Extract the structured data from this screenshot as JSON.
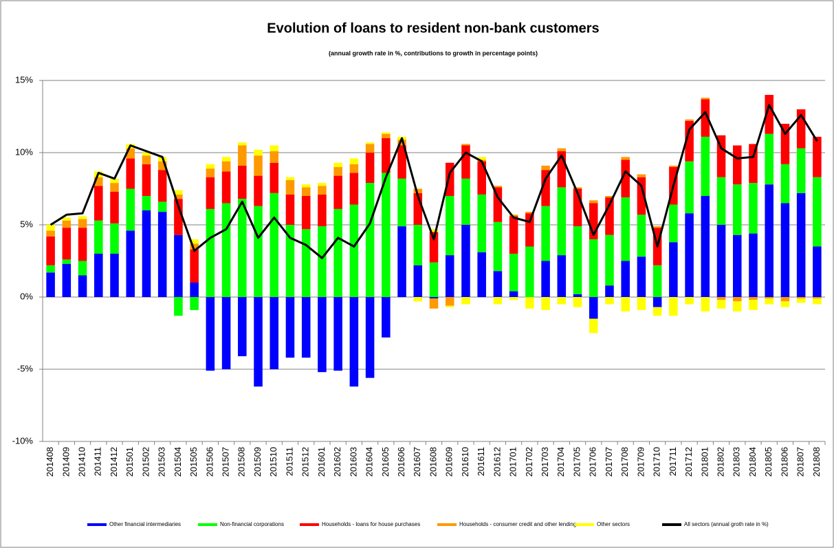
{
  "chart_data": {
    "type": "bar",
    "stacked": true,
    "title": "Evolution of loans to resident non-bank customers",
    "subtitle": "(annual growth rate in %, contributions to growth in percentage points)",
    "categories": [
      "201408",
      "201409",
      "201410",
      "201411",
      "201412",
      "201501",
      "201502",
      "201503",
      "201504",
      "201505",
      "201506",
      "201507",
      "201508",
      "201509",
      "201510",
      "201511",
      "201512",
      "201601",
      "201602",
      "201603",
      "201604",
      "201605",
      "201606",
      "201607",
      "201608",
      "201609",
      "201610",
      "201611",
      "201612",
      "201701",
      "201702",
      "201703",
      "201704",
      "201705",
      "201706",
      "201707",
      "201708",
      "201709",
      "201710",
      "201711",
      "201712",
      "201801",
      "201802",
      "201803",
      "201804",
      "201805",
      "201806",
      "201807",
      "201808"
    ],
    "ylim": [
      -10,
      15
    ],
    "yticks": [
      {
        "value": -10,
        "label": "-10%"
      },
      {
        "value": -5,
        "label": "-5%"
      },
      {
        "value": 0,
        "label": "0%"
      },
      {
        "value": 5,
        "label": "5%"
      },
      {
        "value": 10,
        "label": "10%"
      },
      {
        "value": 15,
        "label": "15%"
      }
    ],
    "grid": true,
    "legend": "bottom",
    "series": [
      {
        "name": "Other financial intermediaries",
        "color": "#0000ff",
        "type": "bar",
        "values": [
          1.7,
          2.3,
          1.5,
          3.0,
          3.0,
          4.6,
          6.0,
          5.9,
          4.3,
          1.0,
          -5.1,
          -5.0,
          -4.1,
          -6.2,
          -5.0,
          -4.2,
          -4.2,
          -5.2,
          -5.1,
          -6.2,
          -5.6,
          -2.8,
          4.9,
          2.2,
          -0.1,
          2.9,
          5.0,
          3.1,
          1.8,
          0.4,
          0.0,
          2.5,
          2.9,
          0.2,
          -1.5,
          0.8,
          2.5,
          2.8,
          -0.7,
          3.8,
          5.8,
          7.0,
          5.0,
          4.3,
          4.4,
          7.8,
          6.5,
          7.2,
          3.5
        ]
      },
      {
        "name": "Non-financial corporations",
        "color": "#00ff00",
        "type": "bar",
        "values": [
          0.5,
          0.3,
          1.0,
          2.3,
          2.1,
          2.9,
          1.0,
          0.7,
          -1.3,
          -0.9,
          6.1,
          6.5,
          6.8,
          6.3,
          7.2,
          5.0,
          4.7,
          4.9,
          6.1,
          6.4,
          7.9,
          8.6,
          3.3,
          2.8,
          2.4,
          4.1,
          3.2,
          4.0,
          3.4,
          2.6,
          3.5,
          3.8,
          4.7,
          4.7,
          4.0,
          3.5,
          4.4,
          2.9,
          2.2,
          2.6,
          3.6,
          4.1,
          3.3,
          3.5,
          3.5,
          3.5,
          2.7,
          3.1,
          4.8
        ]
      },
      {
        "name": "Households - loans for house purchases",
        "color": "#ff0000",
        "type": "bar",
        "values": [
          2.0,
          2.2,
          2.3,
          2.4,
          2.2,
          2.1,
          2.2,
          2.2,
          2.5,
          2.3,
          2.2,
          2.2,
          2.3,
          2.1,
          2.1,
          2.1,
          2.3,
          2.2,
          2.3,
          2.2,
          2.1,
          2.4,
          2.3,
          2.2,
          2.1,
          2.3,
          2.3,
          2.3,
          2.4,
          2.6,
          2.3,
          2.5,
          2.5,
          2.6,
          2.5,
          2.6,
          2.6,
          2.6,
          2.6,
          2.6,
          2.8,
          2.6,
          2.9,
          2.7,
          2.7,
          2.7,
          2.8,
          2.7,
          2.8
        ]
      },
      {
        "name": "Households - consumer credit and other lending",
        "color": "#ff9900",
        "type": "bar",
        "values": [
          0.4,
          0.5,
          0.6,
          0.6,
          0.6,
          0.7,
          0.6,
          0.6,
          0.3,
          0.4,
          0.6,
          0.7,
          1.4,
          1.4,
          0.8,
          1.0,
          0.6,
          0.6,
          0.6,
          0.6,
          0.6,
          0.3,
          0.4,
          0.3,
          -0.7,
          -0.6,
          0.1,
          0.1,
          0.1,
          0.1,
          0.1,
          0.3,
          0.2,
          0.1,
          0.2,
          0.1,
          0.2,
          0.2,
          0.1,
          0.1,
          0.1,
          0.1,
          -0.2,
          -0.3,
          -0.2,
          -0.1,
          -0.3,
          -0.1,
          -0.1
        ]
      },
      {
        "name": "Other sectors",
        "color": "#ffff00",
        "type": "bar",
        "values": [
          0.4,
          0.2,
          0.2,
          0.4,
          0.3,
          0.3,
          0.2,
          0.3,
          0.3,
          0.3,
          0.3,
          0.3,
          0.2,
          0.4,
          0.4,
          0.2,
          0.2,
          0.2,
          0.3,
          0.4,
          0.1,
          0.1,
          0.2,
          -0.3,
          0.2,
          -0.1,
          -0.5,
          0.2,
          -0.5,
          -0.2,
          -0.8,
          -0.9,
          -0.5,
          -0.7,
          -1.0,
          -0.5,
          -1.0,
          -0.9,
          -0.6,
          -1.3,
          -0.5,
          -1.0,
          -0.6,
          -0.7,
          -0.7,
          -0.4,
          -0.4,
          -0.3,
          -0.4
        ]
      },
      {
        "name": "All sectors (annual groth rate in %)",
        "color": "#000000",
        "type": "line",
        "values": [
          5.0,
          5.7,
          5.8,
          8.6,
          8.2,
          10.5,
          10.1,
          9.7,
          6.3,
          3.2,
          4.1,
          4.7,
          6.6,
          4.1,
          5.5,
          4.1,
          3.6,
          2.7,
          4.1,
          3.5,
          5.1,
          8.3,
          11.0,
          7.0,
          4.0,
          8.6,
          10.0,
          9.4,
          6.9,
          5.5,
          5.2,
          8.2,
          9.8,
          7.2,
          4.3,
          6.4,
          8.7,
          7.7,
          3.5,
          7.7,
          11.6,
          12.8,
          10.3,
          9.6,
          9.7,
          13.3,
          11.3,
          12.6,
          10.8
        ]
      }
    ]
  }
}
